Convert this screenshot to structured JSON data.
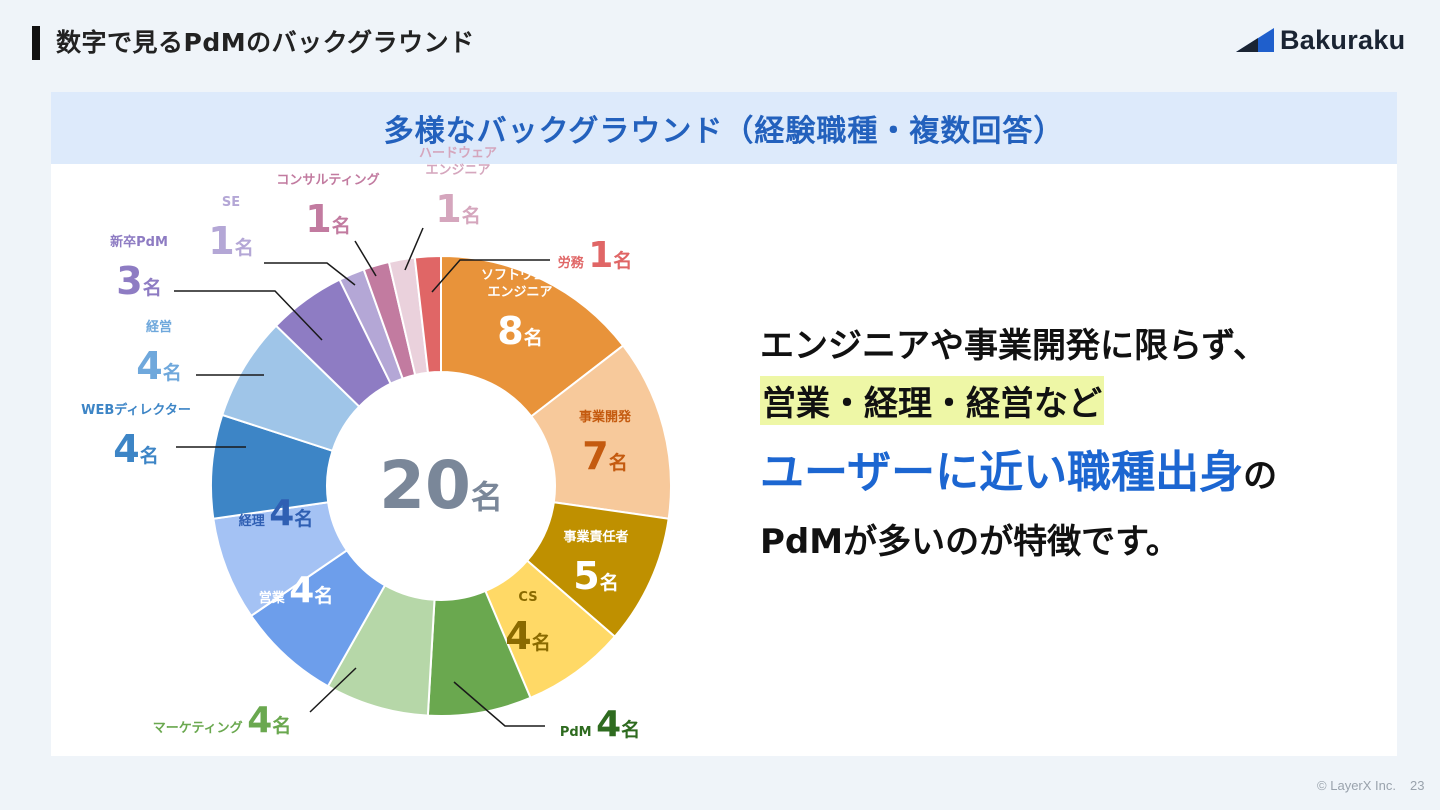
{
  "header": {
    "title": "数字で見るPdMのバックグラウンド",
    "logo_text": "Bakuraku"
  },
  "panel": {
    "heading": "多様なバックグラウンド（経験職種・複数回答）"
  },
  "message": {
    "line1": "エンジニアや事業開発に限らず、",
    "line2": "営業・経理・経営など",
    "line3_highlight": "ユーザーに近い職種出身",
    "line3_tail": "の",
    "line4": "PdMが多いのが特徴です。"
  },
  "footer": {
    "copyright": "© LayerX Inc.",
    "page": "23"
  },
  "chart_data": {
    "type": "pie",
    "center_value": "20",
    "center_unit": "名",
    "unit": "名",
    "slices": [
      {
        "label": "ソフトウェア\nエンジニア",
        "value": 8,
        "color": "#e8933a"
      },
      {
        "label": "事業開発",
        "value": 7,
        "color": "#f7c99b"
      },
      {
        "label": "事業責任者",
        "value": 5,
        "color": "#bf9000"
      },
      {
        "label": "CS",
        "value": 4,
        "color": "#ffd966"
      },
      {
        "label": "PdM",
        "value": 4,
        "color": "#6aa84f"
      },
      {
        "label": "マーケティング",
        "value": 4,
        "color": "#b6d7a8"
      },
      {
        "label": "営業",
        "value": 4,
        "color": "#6d9eeb"
      },
      {
        "label": "経理",
        "value": 4,
        "color": "#a4c2f4"
      },
      {
        "label": "WEBディレクター",
        "value": 4,
        "color": "#3d85c6"
      },
      {
        "label": "経営",
        "value": 4,
        "color": "#9fc5e8"
      },
      {
        "label": "新卒PdM",
        "value": 3,
        "color": "#8e7cc3"
      },
      {
        "label": "SE",
        "value": 1,
        "color": "#b4a7d6"
      },
      {
        "label": "コンサルティング",
        "value": 1,
        "color": "#c27ba0"
      },
      {
        "label": "ハードウェア\nエンジニア",
        "value": 1,
        "color": "#ead1dc"
      },
      {
        "label": "労務",
        "value": 1,
        "color": "#e06666"
      }
    ],
    "label_colors": {
      "ソフトウェア\nエンジニア": "#ffffff",
      "事業開発": "#c45a0f",
      "事業責任者": "#ffffff",
      "CS": "#8a6a00",
      "PdM": "#2e6b1f",
      "マーケティング": "#6aa84f",
      "営業": "#ffffff",
      "経理": "#2f5fb3",
      "WEBディレクター": "#3d85c6",
      "経営": "#6fa8dc",
      "新卒PdM": "#8e7cc3",
      "SE": "#b4a7d6",
      "コンサルティング": "#c27ba0",
      "ハードウェア\nエンジニア": "#d5a6bd",
      "労務": "#e06666"
    },
    "center_color": "#7a8799"
  }
}
